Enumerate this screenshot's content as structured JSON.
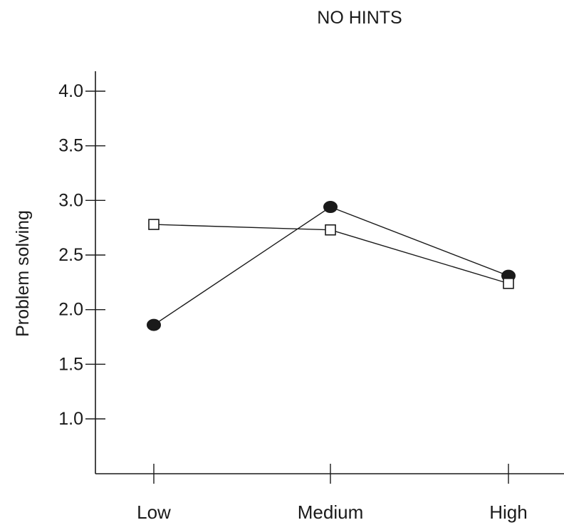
{
  "chart_data": {
    "type": "line",
    "title": "NO HINTS",
    "xlabel": "",
    "ylabel": "Problem solving",
    "categories": [
      "Low",
      "Medium",
      "High"
    ],
    "ylim": [
      0.7,
      4.2
    ],
    "yticks": [
      1.0,
      1.5,
      2.0,
      2.5,
      3.0,
      3.5,
      4.0
    ],
    "ytick_labels": [
      "1.0",
      "1.5",
      "2.0",
      "2.5",
      "3.0",
      "3.5",
      "4.0"
    ],
    "grid": false,
    "legend": "none",
    "series": [
      {
        "marker": "filled-circle",
        "color": "#1a1a1a",
        "values": [
          1.86,
          2.94,
          2.31
        ]
      },
      {
        "marker": "open-square",
        "color": "#1a1a1a",
        "values": [
          2.78,
          2.73,
          2.24
        ]
      }
    ]
  }
}
